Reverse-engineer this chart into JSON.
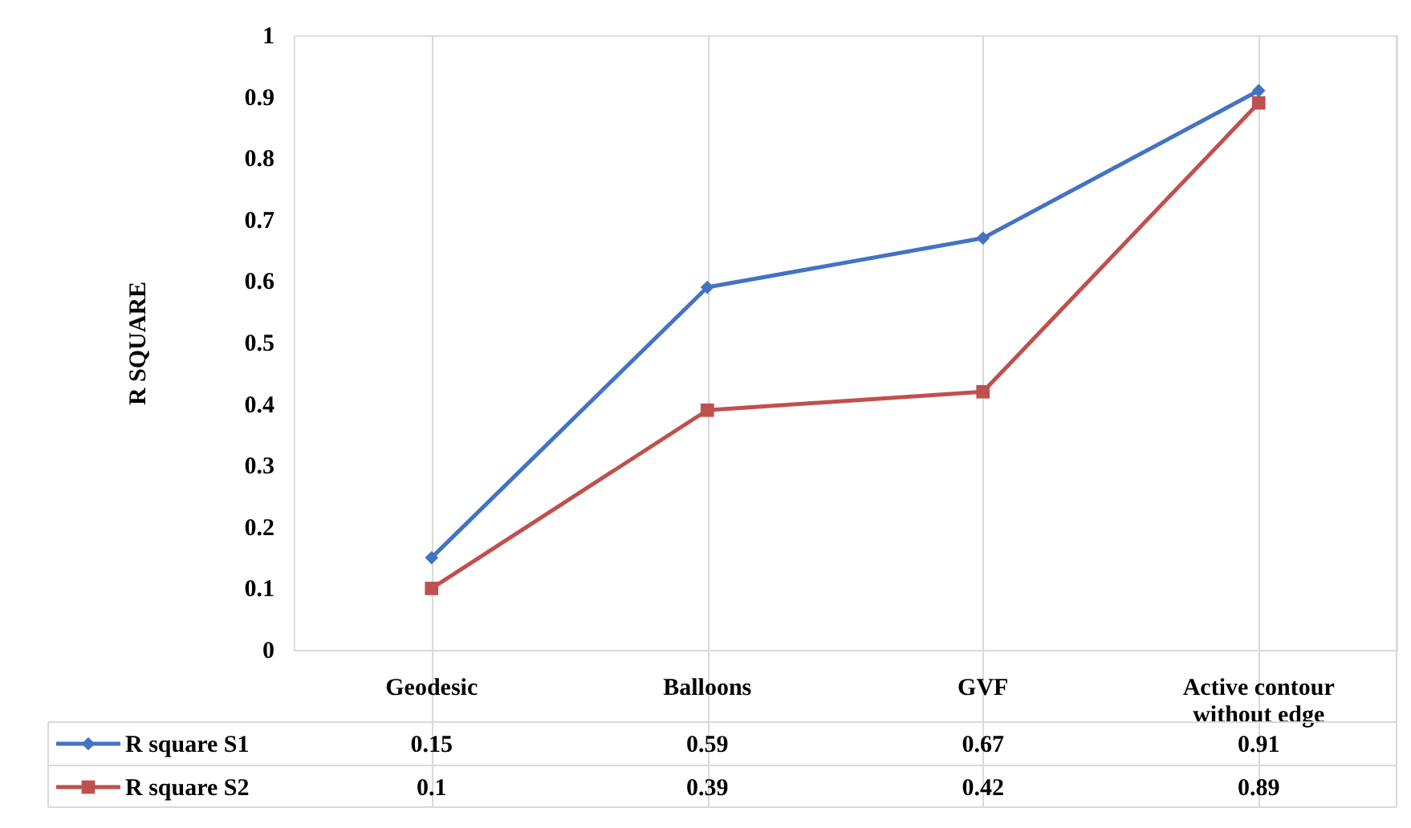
{
  "chart_data": {
    "type": "line",
    "ylabel": "R SQUARE",
    "categories": [
      "Geodesic",
      "Balloons",
      "GVF",
      "Active contour without edge"
    ],
    "series": [
      {
        "name": "R square S1",
        "color": "#4472c4",
        "marker": "diamond",
        "values": [
          0.15,
          0.59,
          0.67,
          0.91
        ]
      },
      {
        "name": "R square S2",
        "color": "#c0504d",
        "marker": "square",
        "values": [
          0.1,
          0.39,
          0.42,
          0.89
        ]
      }
    ],
    "ylim": [
      0,
      1
    ],
    "yticks": [
      0,
      0.1,
      0.2,
      0.3,
      0.4,
      0.5,
      0.6,
      0.7,
      0.8,
      0.9,
      1
    ],
    "grid": "x",
    "legend": "bottom",
    "data_labels": true
  }
}
